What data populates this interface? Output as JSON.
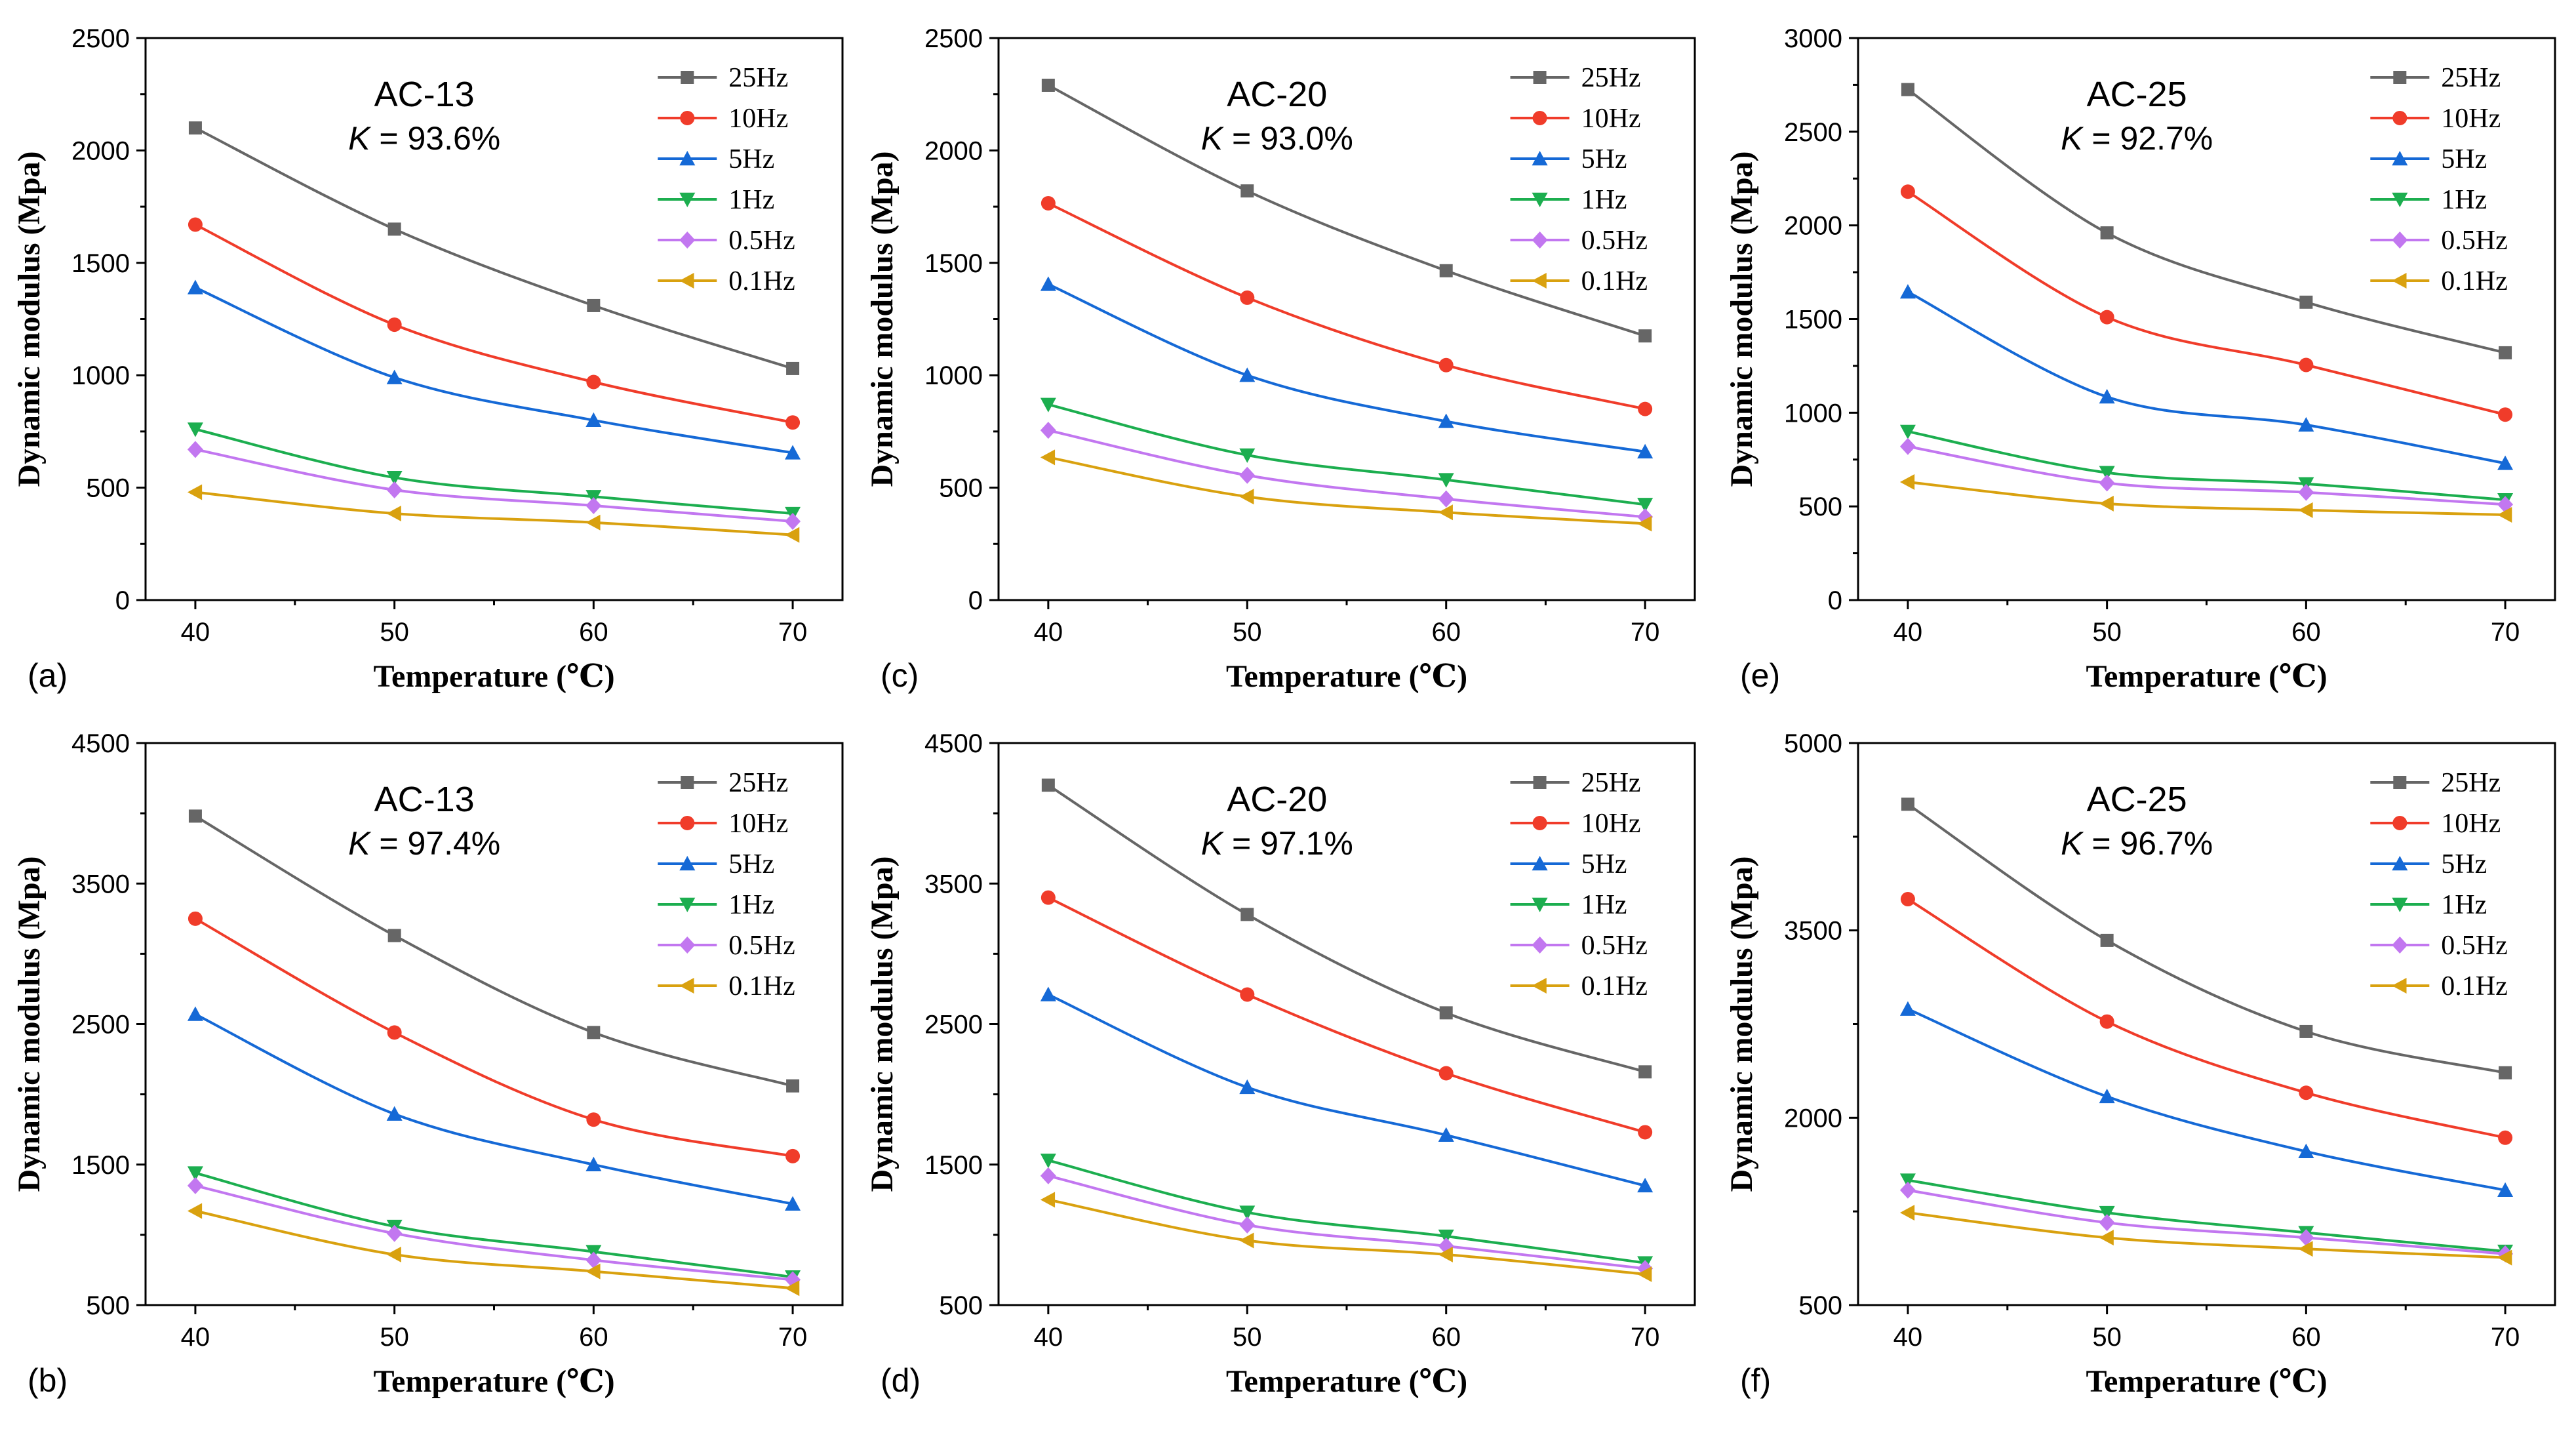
{
  "figure": {
    "series_names": [
      "25Hz",
      "10Hz",
      "5Hz",
      "1Hz",
      "0.5Hz",
      "0.1Hz"
    ],
    "series_colors": [
      "#666666",
      "#f03c2a",
      "#1569d6",
      "#1cae4f",
      "#c277f0",
      "#d9a10f"
    ],
    "series_markers": [
      "square",
      "circle",
      "triangle-up",
      "triangle-down",
      "diamond",
      "triangle-left"
    ]
  },
  "chart_data": [
    {
      "type": "line",
      "panel_label": "(a)",
      "title": "AC-13",
      "k_label": "K",
      "k_value": " = 93.6%",
      "xlabel": "Temperature (℃)",
      "ylabel": "Dynamic modulus (Mpa)",
      "x": [
        40,
        50,
        60,
        70
      ],
      "xlim": [
        37.5,
        72.5
      ],
      "xticks": [
        40,
        50,
        60,
        70
      ],
      "ylim": [
        0,
        2500
      ],
      "yticks": [
        0,
        500,
        1000,
        1500,
        2000,
        2500
      ],
      "legend": "top-right",
      "series": [
        {
          "name": "25Hz",
          "values": [
            2100,
            1650,
            1310,
            1030
          ]
        },
        {
          "name": "10Hz",
          "values": [
            1670,
            1225,
            970,
            790
          ]
        },
        {
          "name": "5Hz",
          "values": [
            1390,
            990,
            800,
            655
          ]
        },
        {
          "name": "1Hz",
          "values": [
            760,
            545,
            460,
            385
          ]
        },
        {
          "name": "0.5Hz",
          "values": [
            670,
            490,
            420,
            350
          ]
        },
        {
          "name": "0.1Hz",
          "values": [
            480,
            385,
            345,
            290
          ]
        }
      ]
    },
    {
      "type": "line",
      "panel_label": "(c)",
      "title": "AC-20",
      "k_label": "K",
      "k_value": " = 93.0%",
      "xlabel": "Temperature (℃)",
      "ylabel": "Dynamic modulus (Mpa)",
      "x": [
        40,
        50,
        60,
        70
      ],
      "xlim": [
        37.5,
        72.5
      ],
      "xticks": [
        40,
        50,
        60,
        70
      ],
      "ylim": [
        0,
        2500
      ],
      "yticks": [
        0,
        500,
        1000,
        1500,
        2000,
        2500
      ],
      "legend": "top-right",
      "series": [
        {
          "name": "25Hz",
          "values": [
            2290,
            1820,
            1465,
            1175
          ]
        },
        {
          "name": "10Hz",
          "values": [
            1765,
            1345,
            1045,
            850
          ]
        },
        {
          "name": "5Hz",
          "values": [
            1405,
            1000,
            795,
            660
          ]
        },
        {
          "name": "1Hz",
          "values": [
            870,
            645,
            535,
            425
          ]
        },
        {
          "name": "0.5Hz",
          "values": [
            755,
            555,
            450,
            370
          ]
        },
        {
          "name": "0.1Hz",
          "values": [
            635,
            460,
            390,
            340
          ]
        }
      ]
    },
    {
      "type": "line",
      "panel_label": "(e)",
      "title": "AC-25",
      "k_label": "K",
      "k_value": " = 92.7%",
      "xlabel": "Temperature (℃)",
      "ylabel": "Dynamic modulus (Mpa)",
      "x": [
        40,
        50,
        60,
        70
      ],
      "xlim": [
        37.5,
        72.5
      ],
      "xticks": [
        40,
        50,
        60,
        70
      ],
      "ylim": [
        0,
        3000
      ],
      "yticks": [
        0,
        500,
        1000,
        1500,
        2000,
        2500,
        3000
      ],
      "legend": "top-right",
      "series": [
        {
          "name": "25Hz",
          "values": [
            2725,
            1960,
            1590,
            1320
          ]
        },
        {
          "name": "10Hz",
          "values": [
            2180,
            1510,
            1255,
            990
          ]
        },
        {
          "name": "5Hz",
          "values": [
            1645,
            1085,
            935,
            730
          ]
        },
        {
          "name": "1Hz",
          "values": [
            900,
            680,
            620,
            535
          ]
        },
        {
          "name": "0.5Hz",
          "values": [
            820,
            625,
            575,
            510
          ]
        },
        {
          "name": "0.1Hz",
          "values": [
            630,
            515,
            480,
            455
          ]
        }
      ]
    },
    {
      "type": "line",
      "panel_label": "(b)",
      "title": "AC-13",
      "k_label": "K",
      "k_value": " = 97.4%",
      "xlabel": "Temperature (℃)",
      "ylabel": "Dynamic modulus (Mpa)",
      "x": [
        40,
        50,
        60,
        70
      ],
      "xlim": [
        37.5,
        72.5
      ],
      "xticks": [
        40,
        50,
        60,
        70
      ],
      "ylim": [
        500,
        4500
      ],
      "yticks": [
        500,
        1500,
        2500,
        3500,
        4500
      ],
      "legend": "top-right",
      "series": [
        {
          "name": "25Hz",
          "values": [
            3980,
            3130,
            2440,
            2060
          ]
        },
        {
          "name": "10Hz",
          "values": [
            3250,
            2440,
            1820,
            1560
          ]
        },
        {
          "name": "5Hz",
          "values": [
            2570,
            1860,
            1500,
            1220
          ]
        },
        {
          "name": "1Hz",
          "values": [
            1440,
            1060,
            880,
            700
          ]
        },
        {
          "name": "0.5Hz",
          "values": [
            1350,
            1010,
            820,
            680
          ]
        },
        {
          "name": "0.1Hz",
          "values": [
            1170,
            860,
            740,
            620
          ]
        }
      ]
    },
    {
      "type": "line",
      "panel_label": "(d)",
      "title": "AC-20",
      "k_label": "K",
      "k_value": " = 97.1%",
      "xlabel": "Temperature (℃)",
      "ylabel": "Dynamic modulus (Mpa)",
      "x": [
        40,
        50,
        60,
        70
      ],
      "xlim": [
        37.5,
        72.5
      ],
      "xticks": [
        40,
        50,
        60,
        70
      ],
      "ylim": [
        500,
        4500
      ],
      "yticks": [
        500,
        1500,
        2500,
        3500,
        4500
      ],
      "legend": "top-right",
      "series": [
        {
          "name": "25Hz",
          "values": [
            4200,
            3280,
            2580,
            2160
          ]
        },
        {
          "name": "10Hz",
          "values": [
            3400,
            2710,
            2150,
            1730
          ]
        },
        {
          "name": "5Hz",
          "values": [
            2710,
            2050,
            1710,
            1350
          ]
        },
        {
          "name": "1Hz",
          "values": [
            1530,
            1160,
            990,
            800
          ]
        },
        {
          "name": "0.5Hz",
          "values": [
            1420,
            1070,
            920,
            760
          ]
        },
        {
          "name": "0.1Hz",
          "values": [
            1250,
            960,
            860,
            720
          ]
        }
      ]
    },
    {
      "type": "line",
      "panel_label": "(f)",
      "title": "AC-25",
      "k_label": "K",
      "k_value": " = 96.7%",
      "xlabel": "Temperature (℃)",
      "ylabel": "Dynamic modulus (Mpa)",
      "x": [
        40,
        50,
        60,
        70
      ],
      "xlim": [
        37.5,
        72.5
      ],
      "xticks": [
        40,
        50,
        60,
        70
      ],
      "ylim": [
        500,
        5000
      ],
      "yticks": [
        500,
        2000,
        3500,
        5000
      ],
      "legend": "top-right",
      "series": [
        {
          "name": "25Hz",
          "values": [
            4510,
            3420,
            2690,
            2360
          ]
        },
        {
          "name": "10Hz",
          "values": [
            3750,
            2770,
            2200,
            1840
          ]
        },
        {
          "name": "5Hz",
          "values": [
            2870,
            2170,
            1730,
            1420
          ]
        },
        {
          "name": "1Hz",
          "values": [
            1500,
            1240,
            1080,
            930
          ]
        },
        {
          "name": "0.5Hz",
          "values": [
            1420,
            1160,
            1040,
            910
          ]
        },
        {
          "name": "0.1Hz",
          "values": [
            1240,
            1040,
            950,
            880
          ]
        }
      ]
    }
  ]
}
